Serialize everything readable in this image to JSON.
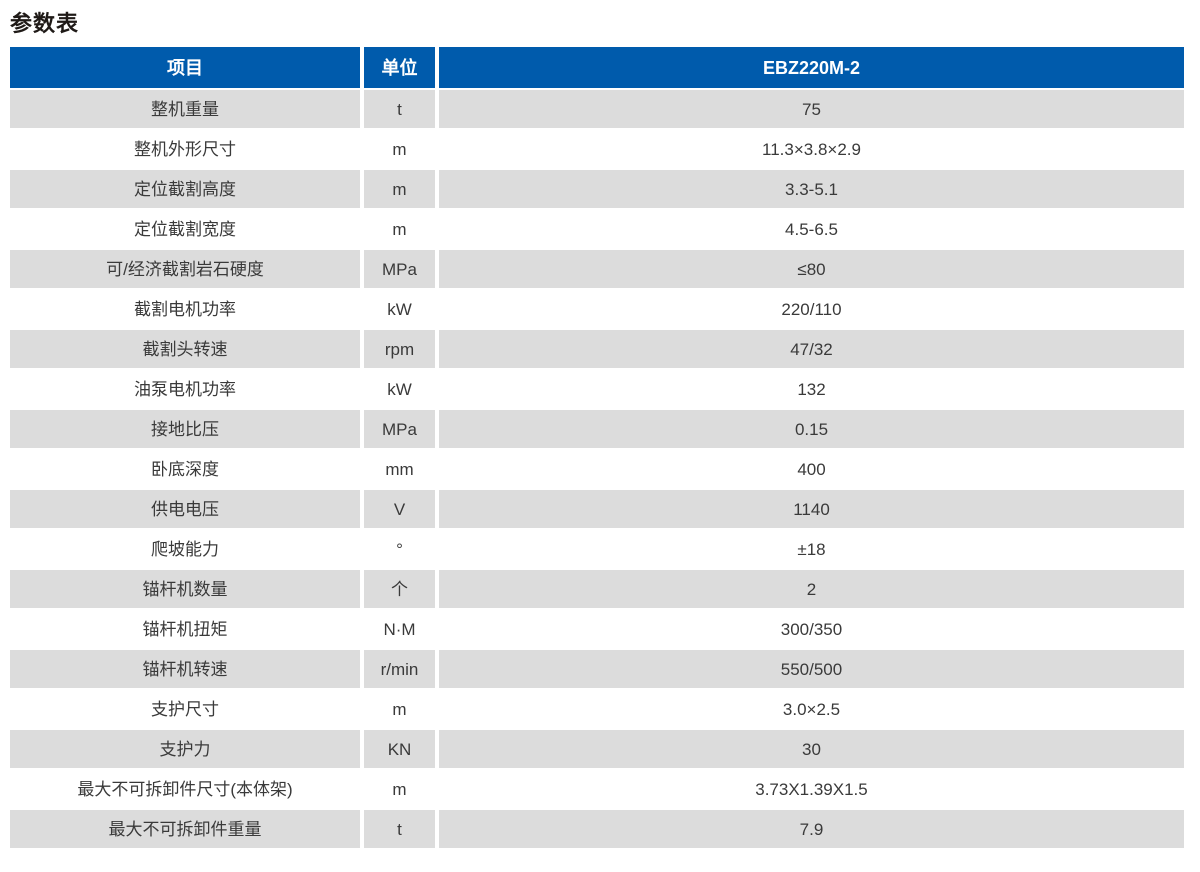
{
  "title": "参数表",
  "colors": {
    "header_bg": "#005BAC",
    "header_text": "#ffffff",
    "row_alt_bg": "#DCDCDC",
    "row_bg": "#ffffff",
    "body_text": "#3a3a3a"
  },
  "table": {
    "columns": {
      "item": "项目",
      "unit": "单位",
      "model": "EBZ220M-2"
    },
    "rows": [
      {
        "item": "整机重量",
        "unit": "t",
        "value": "75"
      },
      {
        "item": "整机外形尺寸",
        "unit": "m",
        "value": "11.3×3.8×2.9"
      },
      {
        "item": "定位截割高度",
        "unit": "m",
        "value": "3.3-5.1"
      },
      {
        "item": "定位截割宽度",
        "unit": "m",
        "value": "4.5-6.5"
      },
      {
        "item": "可/经济截割岩石硬度",
        "unit": "MPa",
        "value": "≤80"
      },
      {
        "item": "截割电机功率",
        "unit": "kW",
        "value": "220/110"
      },
      {
        "item": "截割头转速",
        "unit": "rpm",
        "value": "47/32"
      },
      {
        "item": "油泵电机功率",
        "unit": "kW",
        "value": "132"
      },
      {
        "item": "接地比压",
        "unit": "MPa",
        "value": "0.15"
      },
      {
        "item": "卧底深度",
        "unit": "mm",
        "value": "400"
      },
      {
        "item": "供电电压",
        "unit": "V",
        "value": "1140"
      },
      {
        "item": "爬坡能力",
        "unit": "°",
        "value": "±18"
      },
      {
        "item": "锚杆机数量",
        "unit": "个",
        "value": "2"
      },
      {
        "item": "锚杆机扭矩",
        "unit": "N·M",
        "value": "300/350"
      },
      {
        "item": "锚杆机转速",
        "unit": "r/min",
        "value": "550/500"
      },
      {
        "item": "支护尺寸",
        "unit": "m",
        "value": "3.0×2.5"
      },
      {
        "item": "支护力",
        "unit": "KN",
        "value": "30"
      },
      {
        "item": "最大不可拆卸件尺寸(本体架)",
        "unit": "m",
        "value": "3.73X1.39X1.5"
      },
      {
        "item": "最大不可拆卸件重量",
        "unit": "t",
        "value": "7.9"
      }
    ]
  }
}
